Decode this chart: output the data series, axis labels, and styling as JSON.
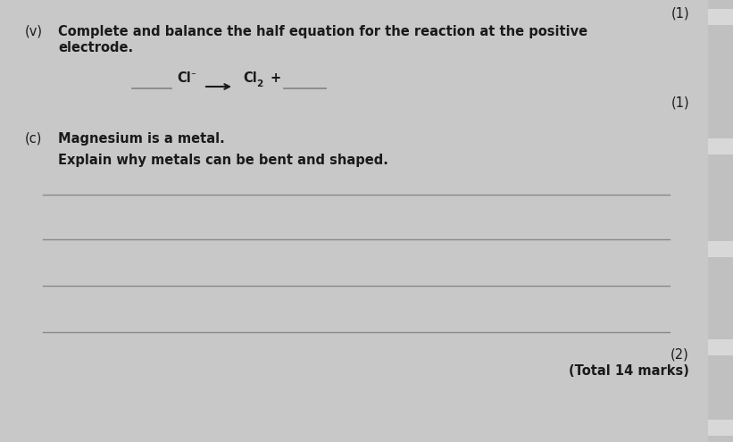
{
  "background_color": "#c8c8c8",
  "page_color": "#e2e2e2",
  "right_tab_color": "#c0c0c0",
  "top_mark": "(1)",
  "section_v_label": "(v)",
  "section_v_text_line1": "Complete and balance the half equation for the reaction at the positive",
  "section_v_text_line2": "electrode.",
  "mark_v": "(1)",
  "section_c_label": "(c)",
  "section_c_text": "Magnesium is a metal.",
  "explain_text": "Explain why metals can be bent and shaped.",
  "mark_c": "(2)",
  "total_marks": "(Total 14 marks)",
  "line_color": "#888888",
  "text_color": "#1a1a1a",
  "font_size": 10.5,
  "small_font_size": 9
}
